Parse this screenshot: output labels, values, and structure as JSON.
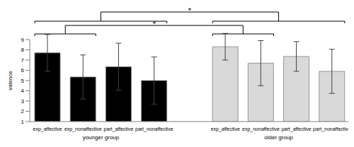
{
  "chart_data": {
    "type": "bar",
    "y_label": "valence",
    "categories": [
      "exp_affective",
      "exp_nonaffective",
      "part_affective",
      "part_nonaffective",
      null,
      "exp_affective",
      "exp_nonaffective",
      "part_affective",
      "part_nonaffective"
    ],
    "values": [
      7.7,
      5.35,
      6.35,
      5.0,
      null,
      8.3,
      6.7,
      7.35,
      5.9
    ],
    "errors": [
      1.8,
      2.15,
      2.3,
      2.3,
      null,
      1.3,
      2.2,
      1.45,
      2.15
    ],
    "colors": [
      "#000000",
      "#000000",
      "#000000",
      "#000000",
      null,
      "#d9d9d9",
      "#d9d9d9",
      "#d9d9d9",
      "#d9d9d9"
    ],
    "groups": [
      {
        "label": "younger group",
        "categories": [
          0,
          3
        ]
      },
      {
        "label": "older group",
        "categories": [
          5,
          8
        ]
      }
    ],
    "significance": [
      {
        "left": [
          0,
          3
        ],
        "right": [
          5,
          8
        ],
        "label": "*"
      },
      {
        "left": [
          0,
          1
        ],
        "right": [
          5,
          6
        ],
        "label": "*"
      }
    ],
    "ylim": [
      1,
      9
    ],
    "yticks": [
      1,
      2,
      3,
      4,
      5,
      6,
      7,
      8,
      9
    ]
  }
}
